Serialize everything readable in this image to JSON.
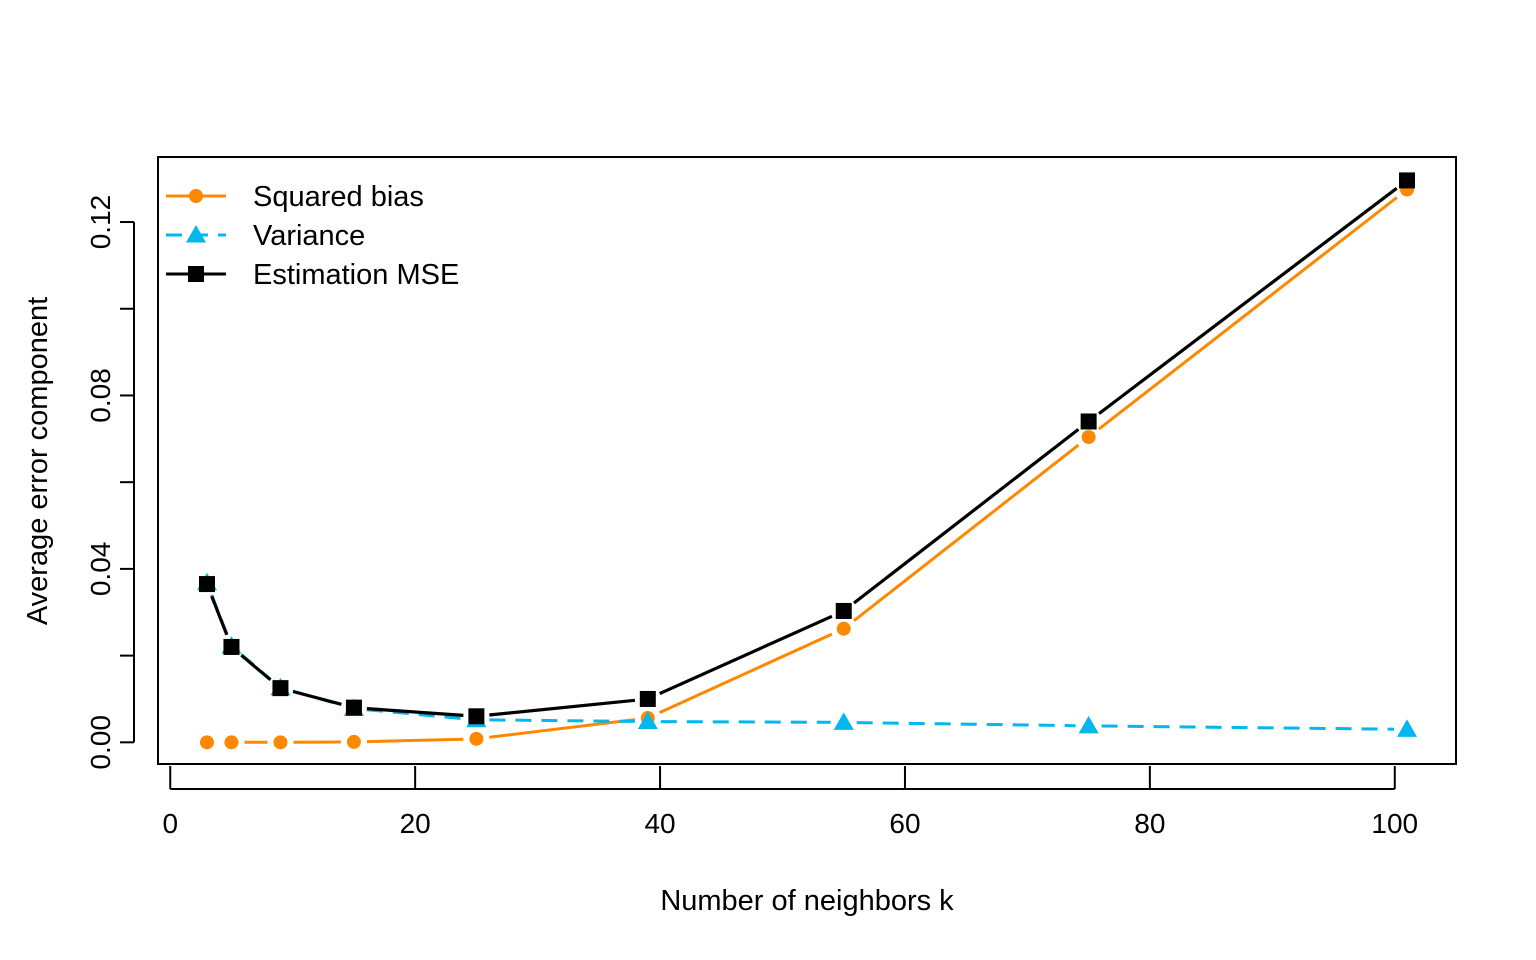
{
  "chart_data": {
    "type": "line",
    "title": "",
    "xlabel": "Number of neighbors k",
    "ylabel": "Average error component",
    "x": [
      3,
      5,
      9,
      15,
      25,
      39,
      55,
      75,
      101
    ],
    "xlim": [
      -1,
      105
    ],
    "ylim": [
      -0.005,
      0.135
    ],
    "x_ticks": [
      0,
      20,
      40,
      60,
      80,
      100
    ],
    "y_ticks": [
      0,
      0.02,
      0.04,
      0.06,
      0.08,
      0.1,
      0.12
    ],
    "y_tick_labels": {
      "0": "0.00",
      "0.04": "0.04",
      "0.08": "0.08",
      "0.12": "0.12"
    },
    "grid": false,
    "legend_position": "top-left",
    "series": [
      {
        "name": "Squared bias",
        "color": "#ff8800",
        "line_style": "solid",
        "marker": "circle",
        "values": [
          0.0,
          0.0,
          0.0,
          0.0001,
          0.0008,
          0.0056,
          0.0262,
          0.0704,
          0.1275
        ]
      },
      {
        "name": "Variance",
        "color": "#00b7ee",
        "line_style": "dashed",
        "marker": "triangle",
        "values": [
          0.0368,
          0.0222,
          0.0126,
          0.0078,
          0.0052,
          0.0048,
          0.0046,
          0.0038,
          0.003
        ]
      },
      {
        "name": "Estimation MSE",
        "color": "#000000",
        "line_style": "solid",
        "marker": "square",
        "values": [
          0.0365,
          0.022,
          0.0125,
          0.008,
          0.006,
          0.01,
          0.0303,
          0.074,
          0.1296
        ]
      }
    ]
  }
}
